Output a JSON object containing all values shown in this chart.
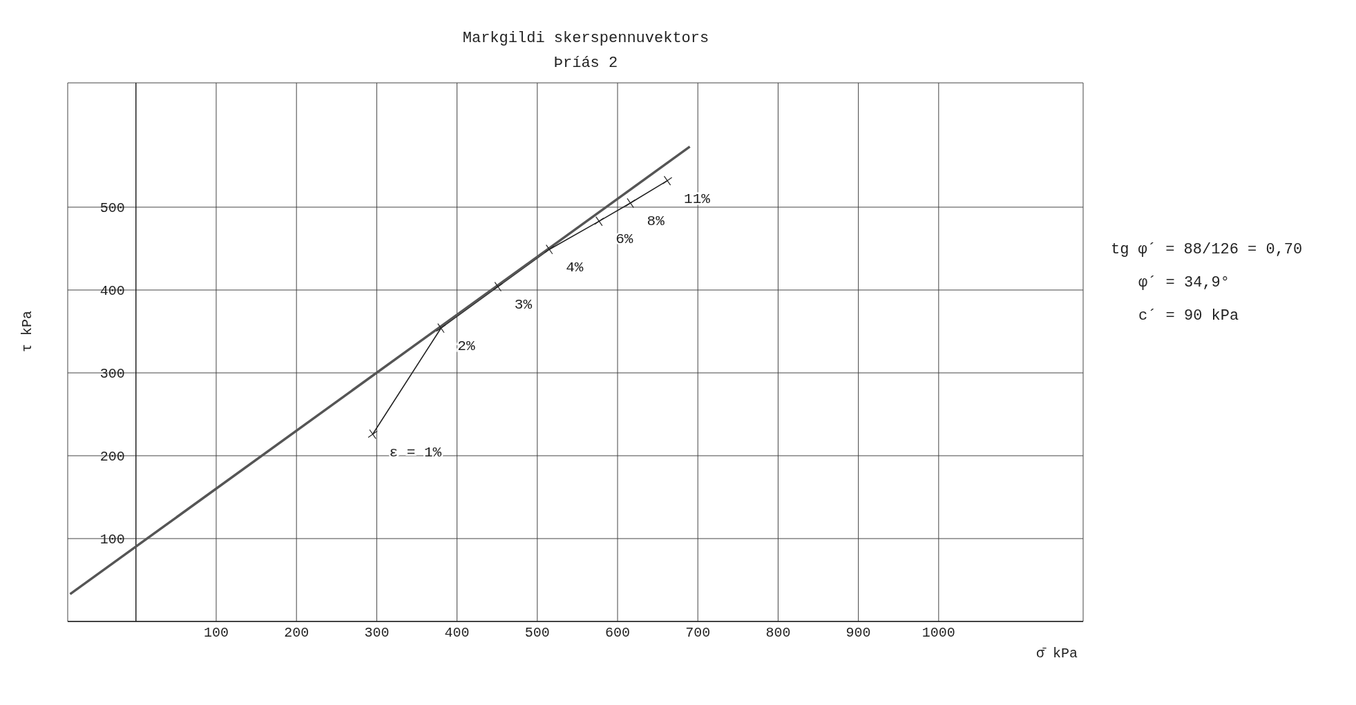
{
  "chart_data": {
    "type": "line",
    "title": "Markgildi skerspennuvektors",
    "subtitle": "Þríás 2",
    "xlabel": "σ̄ kPa",
    "ylabel": "τ kPa",
    "xlim": [
      -85,
      1180
    ],
    "ylim": [
      0,
      650
    ],
    "xticks": [
      100,
      200,
      300,
      400,
      500,
      600,
      700,
      800,
      900,
      1000
    ],
    "yticks": [
      100,
      200,
      300,
      400,
      500
    ],
    "grid": true,
    "series": [
      {
        "marker": "cross",
        "color": "#222222",
        "x": [
          295,
          380,
          451,
          515,
          577,
          616,
          662
        ],
        "values": [
          226,
          354,
          404,
          449,
          483,
          505,
          532
        ]
      },
      {
        "marker": "none",
        "color": "#555555",
        "x": [
          -82,
          690
        ],
        "values": [
          33,
          573
        ]
      }
    ],
    "annotations": [
      {
        "text": "ε = 1%",
        "x": 295,
        "y": 226
      },
      {
        "text": "2%",
        "x": 380,
        "y": 354
      },
      {
        "text": "3%",
        "x": 451,
        "y": 404
      },
      {
        "text": "4%",
        "x": 515,
        "y": 449
      },
      {
        "text": "6%",
        "x": 577,
        "y": 483
      },
      {
        "text": "8%",
        "x": 616,
        "y": 505
      },
      {
        "text": "11%",
        "x": 662,
        "y": 532
      },
      "tg φ´ = 88/126 = 0,70",
      "φ´ = 34,9°",
      "c´ = 90 kPa"
    ]
  }
}
